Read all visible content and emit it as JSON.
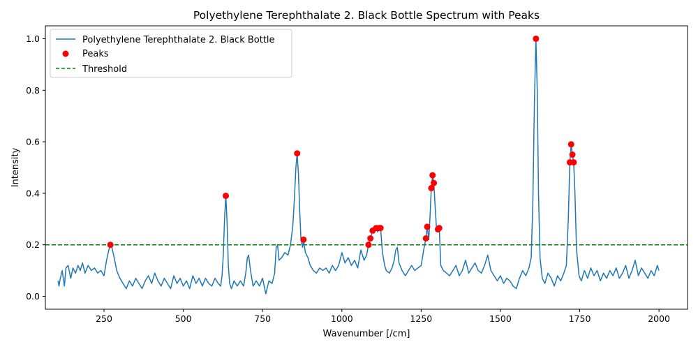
{
  "chart_data": {
    "type": "line",
    "title": "Polyethylene Terephthalate 2. Black Bottle Spectrum with Peaks",
    "xlabel": "Wavenumber [/cm]",
    "ylabel": "Intensity",
    "xlim": [
      65,
      2090
    ],
    "ylim": [
      -0.05,
      1.05
    ],
    "xticks": [
      250,
      500,
      750,
      1000,
      1250,
      1500,
      1750,
      2000
    ],
    "yticks": [
      0.0,
      0.2,
      0.4,
      0.6,
      0.8,
      1.0
    ],
    "threshold": 0.2,
    "legend_position": "top-left",
    "colors": {
      "line": "#1f77b4",
      "peaks": "#ff0000",
      "threshold": "#008000"
    },
    "legend": [
      {
        "label": "Polyethylene Terephthalate 2. Black Bottle",
        "kind": "line"
      },
      {
        "label": "Peaks",
        "kind": "marker"
      },
      {
        "label": "Threshold",
        "kind": "dashed"
      }
    ],
    "series": [
      {
        "name": "Polyethylene Terephthalate 2. Black Bottle",
        "points": [
          [
            105,
            0.06
          ],
          [
            108,
            0.04
          ],
          [
            112,
            0.07
          ],
          [
            118,
            0.1
          ],
          [
            125,
            0.04
          ],
          [
            130,
            0.11
          ],
          [
            137,
            0.12
          ],
          [
            145,
            0.07
          ],
          [
            152,
            0.11
          ],
          [
            160,
            0.09
          ],
          [
            168,
            0.12
          ],
          [
            175,
            0.1
          ],
          [
            182,
            0.13
          ],
          [
            190,
            0.09
          ],
          [
            200,
            0.12
          ],
          [
            210,
            0.1
          ],
          [
            220,
            0.11
          ],
          [
            230,
            0.09
          ],
          [
            240,
            0.1
          ],
          [
            250,
            0.08
          ],
          [
            258,
            0.14
          ],
          [
            265,
            0.18
          ],
          [
            270,
            0.2
          ],
          [
            275,
            0.19
          ],
          [
            282,
            0.15
          ],
          [
            290,
            0.1
          ],
          [
            300,
            0.07
          ],
          [
            310,
            0.05
          ],
          [
            320,
            0.03
          ],
          [
            330,
            0.06
          ],
          [
            340,
            0.04
          ],
          [
            350,
            0.07
          ],
          [
            360,
            0.05
          ],
          [
            370,
            0.03
          ],
          [
            380,
            0.06
          ],
          [
            390,
            0.08
          ],
          [
            400,
            0.05
          ],
          [
            410,
            0.09
          ],
          [
            420,
            0.06
          ],
          [
            430,
            0.04
          ],
          [
            440,
            0.07
          ],
          [
            450,
            0.05
          ],
          [
            460,
            0.03
          ],
          [
            470,
            0.08
          ],
          [
            480,
            0.05
          ],
          [
            490,
            0.07
          ],
          [
            500,
            0.04
          ],
          [
            510,
            0.06
          ],
          [
            520,
            0.03
          ],
          [
            530,
            0.08
          ],
          [
            540,
            0.05
          ],
          [
            550,
            0.07
          ],
          [
            560,
            0.04
          ],
          [
            570,
            0.07
          ],
          [
            580,
            0.05
          ],
          [
            590,
            0.04
          ],
          [
            600,
            0.07
          ],
          [
            610,
            0.05
          ],
          [
            618,
            0.04
          ],
          [
            622,
            0.08
          ],
          [
            626,
            0.16
          ],
          [
            630,
            0.3
          ],
          [
            634,
            0.39
          ],
          [
            638,
            0.29
          ],
          [
            642,
            0.12
          ],
          [
            646,
            0.05
          ],
          [
            652,
            0.03
          ],
          [
            660,
            0.06
          ],
          [
            670,
            0.04
          ],
          [
            680,
            0.06
          ],
          [
            690,
            0.04
          ],
          [
            697,
            0.09
          ],
          [
            702,
            0.15
          ],
          [
            706,
            0.16
          ],
          [
            712,
            0.1
          ],
          [
            720,
            0.04
          ],
          [
            730,
            0.06
          ],
          [
            740,
            0.04
          ],
          [
            750,
            0.07
          ],
          [
            760,
            0.01
          ],
          [
            770,
            0.06
          ],
          [
            780,
            0.05
          ],
          [
            788,
            0.09
          ],
          [
            793,
            0.19
          ],
          [
            797,
            0.2
          ],
          [
            802,
            0.14
          ],
          [
            810,
            0.15
          ],
          [
            820,
            0.17
          ],
          [
            830,
            0.16
          ],
          [
            838,
            0.2
          ],
          [
            845,
            0.27
          ],
          [
            850,
            0.37
          ],
          [
            855,
            0.5
          ],
          [
            859,
            0.555
          ],
          [
            863,
            0.48
          ],
          [
            867,
            0.33
          ],
          [
            871,
            0.22
          ],
          [
            876,
            0.19
          ],
          [
            879,
            0.22
          ],
          [
            885,
            0.17
          ],
          [
            893,
            0.15
          ],
          [
            900,
            0.12
          ],
          [
            910,
            0.1
          ],
          [
            920,
            0.09
          ],
          [
            930,
            0.11
          ],
          [
            940,
            0.1
          ],
          [
            950,
            0.11
          ],
          [
            960,
            0.09
          ],
          [
            970,
            0.12
          ],
          [
            980,
            0.1
          ],
          [
            990,
            0.12
          ],
          [
            1000,
            0.17
          ],
          [
            1010,
            0.13
          ],
          [
            1020,
            0.15
          ],
          [
            1030,
            0.12
          ],
          [
            1040,
            0.14
          ],
          [
            1050,
            0.11
          ],
          [
            1060,
            0.18
          ],
          [
            1070,
            0.14
          ],
          [
            1078,
            0.16
          ],
          [
            1084,
            0.2
          ],
          [
            1090,
            0.225
          ],
          [
            1097,
            0.255
          ],
          [
            1104,
            0.26
          ],
          [
            1108,
            0.265
          ],
          [
            1113,
            0.25
          ],
          [
            1117,
            0.265
          ],
          [
            1122,
            0.265
          ],
          [
            1128,
            0.17
          ],
          [
            1135,
            0.12
          ],
          [
            1140,
            0.1
          ],
          [
            1150,
            0.09
          ],
          [
            1158,
            0.11
          ],
          [
            1165,
            0.14
          ],
          [
            1170,
            0.18
          ],
          [
            1175,
            0.19
          ],
          [
            1180,
            0.13
          ],
          [
            1190,
            0.1
          ],
          [
            1200,
            0.08
          ],
          [
            1210,
            0.1
          ],
          [
            1220,
            0.12
          ],
          [
            1230,
            0.1
          ],
          [
            1240,
            0.11
          ],
          [
            1250,
            0.12
          ],
          [
            1258,
            0.18
          ],
          [
            1265,
            0.225
          ],
          [
            1269,
            0.27
          ],
          [
            1274,
            0.22
          ],
          [
            1278,
            0.31
          ],
          [
            1282,
            0.42
          ],
          [
            1286,
            0.47
          ],
          [
            1290,
            0.44
          ],
          [
            1294,
            0.35
          ],
          [
            1298,
            0.27
          ],
          [
            1303,
            0.26
          ],
          [
            1307,
            0.265
          ],
          [
            1312,
            0.12
          ],
          [
            1320,
            0.1
          ],
          [
            1330,
            0.09
          ],
          [
            1340,
            0.08
          ],
          [
            1350,
            0.1
          ],
          [
            1360,
            0.12
          ],
          [
            1370,
            0.08
          ],
          [
            1380,
            0.1
          ],
          [
            1390,
            0.14
          ],
          [
            1400,
            0.09
          ],
          [
            1410,
            0.11
          ],
          [
            1420,
            0.13
          ],
          [
            1430,
            0.1
          ],
          [
            1440,
            0.09
          ],
          [
            1450,
            0.12
          ],
          [
            1460,
            0.16
          ],
          [
            1470,
            0.1
          ],
          [
            1480,
            0.08
          ],
          [
            1490,
            0.06
          ],
          [
            1500,
            0.08
          ],
          [
            1510,
            0.05
          ],
          [
            1520,
            0.07
          ],
          [
            1530,
            0.06
          ],
          [
            1540,
            0.04
          ],
          [
            1550,
            0.03
          ],
          [
            1560,
            0.07
          ],
          [
            1570,
            0.1
          ],
          [
            1580,
            0.08
          ],
          [
            1590,
            0.11
          ],
          [
            1597,
            0.15
          ],
          [
            1602,
            0.35
          ],
          [
            1607,
            0.75
          ],
          [
            1612,
            1.0
          ],
          [
            1616,
            0.8
          ],
          [
            1620,
            0.4
          ],
          [
            1625,
            0.15
          ],
          [
            1632,
            0.07
          ],
          [
            1640,
            0.05
          ],
          [
            1650,
            0.09
          ],
          [
            1660,
            0.07
          ],
          [
            1670,
            0.04
          ],
          [
            1680,
            0.08
          ],
          [
            1690,
            0.06
          ],
          [
            1700,
            0.09
          ],
          [
            1708,
            0.12
          ],
          [
            1714,
            0.3
          ],
          [
            1719,
            0.52
          ],
          [
            1723,
            0.59
          ],
          [
            1727,
            0.55
          ],
          [
            1731,
            0.52
          ],
          [
            1735,
            0.4
          ],
          [
            1740,
            0.18
          ],
          [
            1748,
            0.08
          ],
          [
            1755,
            0.06
          ],
          [
            1765,
            0.1
          ],
          [
            1775,
            0.07
          ],
          [
            1785,
            0.11
          ],
          [
            1795,
            0.08
          ],
          [
            1805,
            0.1
          ],
          [
            1815,
            0.06
          ],
          [
            1825,
            0.09
          ],
          [
            1835,
            0.07
          ],
          [
            1845,
            0.1
          ],
          [
            1855,
            0.08
          ],
          [
            1865,
            0.11
          ],
          [
            1875,
            0.07
          ],
          [
            1885,
            0.09
          ],
          [
            1895,
            0.12
          ],
          [
            1905,
            0.07
          ],
          [
            1915,
            0.1
          ],
          [
            1925,
            0.14
          ],
          [
            1935,
            0.08
          ],
          [
            1945,
            0.11
          ],
          [
            1955,
            0.09
          ],
          [
            1965,
            0.07
          ],
          [
            1975,
            0.1
          ],
          [
            1985,
            0.08
          ],
          [
            1995,
            0.12
          ],
          [
            2000,
            0.1
          ]
        ]
      }
    ],
    "peaks": [
      [
        270,
        0.2
      ],
      [
        634,
        0.39
      ],
      [
        859,
        0.555
      ],
      [
        879,
        0.22
      ],
      [
        1084,
        0.2
      ],
      [
        1090,
        0.225
      ],
      [
        1097,
        0.255
      ],
      [
        1108,
        0.265
      ],
      [
        1117,
        0.265
      ],
      [
        1122,
        0.265
      ],
      [
        1265,
        0.225
      ],
      [
        1269,
        0.27
      ],
      [
        1282,
        0.42
      ],
      [
        1286,
        0.47
      ],
      [
        1290,
        0.44
      ],
      [
        1303,
        0.26
      ],
      [
        1307,
        0.265
      ],
      [
        1612,
        1.0
      ],
      [
        1719,
        0.52
      ],
      [
        1723,
        0.59
      ],
      [
        1727,
        0.55
      ],
      [
        1731,
        0.52
      ]
    ]
  }
}
